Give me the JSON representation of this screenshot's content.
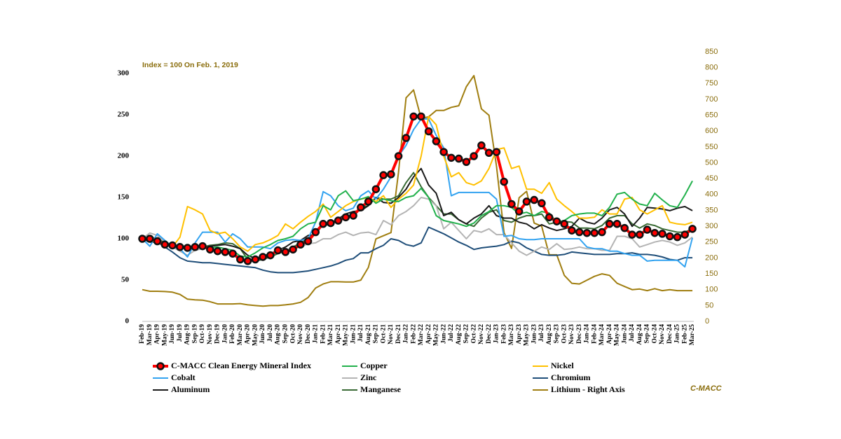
{
  "chart_data": {
    "type": "line",
    "annotation": "Index = 100 On Feb. 1, 2019",
    "source": "C-MACC",
    "legend": "bottom",
    "categories": [
      "Feb-19",
      "Mar-19",
      "Apr-19",
      "May-19",
      "Jun-19",
      "Jul-19",
      "Aug-19",
      "Sep-19",
      "Oct-19",
      "Nov-19",
      "Dec-19",
      "Jan-20",
      "Feb-20",
      "Mar-20",
      "Apr-20",
      "May-20",
      "Jun-20",
      "Jul-20",
      "Aug-20",
      "Sep-20",
      "Oct-20",
      "Nov-20",
      "Dec-20",
      "Jan-21",
      "Feb-21",
      "Mar-21",
      "Apr-21",
      "May-21",
      "Jun-21",
      "Jul-21",
      "Aug-21",
      "Sep-21",
      "Oct-21",
      "Nov-21",
      "Dec-21",
      "Jan-22",
      "Feb-22",
      "Mar-22",
      "Apr-22",
      "May-22",
      "Jun-22",
      "Jul-22",
      "Aug-22",
      "Sep-22",
      "Oct-22",
      "Nov-22",
      "Dec-22",
      "Jan-23",
      "Feb-23",
      "Mar-23",
      "Apr-23",
      "May-23",
      "Jun-23",
      "Jul-23",
      "Aug-23",
      "Sep-23",
      "Oct-23",
      "Nov-23",
      "Dec-23",
      "Jan-24",
      "Feb-24",
      "Mar-24",
      "Apr-24",
      "May-24",
      "Jun-24",
      "Jul-24",
      "Aug-24",
      "Sep-24",
      "Oct-24",
      "Nov-24",
      "Dec-24",
      "Jan-25",
      "Feb-25",
      "Mar-25"
    ],
    "ylim": [
      0,
      300
    ],
    "yticks": [
      0,
      50,
      100,
      150,
      200,
      250,
      300
    ],
    "y2lim": [
      0,
      850
    ],
    "y2ticks": [
      0,
      50,
      100,
      150,
      200,
      250,
      300,
      350,
      400,
      450,
      500,
      550,
      600,
      650,
      700,
      750,
      800,
      850
    ],
    "series": [
      {
        "name": "C-MACC Clean Energy Mineral Index",
        "color": "#ff0000",
        "markers": true,
        "values": [
          100,
          100,
          97,
          93,
          92,
          90,
          89,
          90,
          91,
          87,
          85,
          84,
          82,
          75,
          73,
          75,
          78,
          80,
          86,
          84,
          87,
          93,
          97,
          108,
          118,
          119,
          122,
          126,
          128,
          138,
          145,
          160,
          177,
          178,
          200,
          222,
          248,
          248,
          230,
          218,
          205,
          198,
          197,
          193,
          200,
          213,
          204,
          205,
          169,
          142,
          133,
          145,
          147,
          143,
          126,
          121,
          118,
          110,
          108,
          107,
          107,
          108,
          118,
          118,
          113,
          105,
          105,
          111,
          107,
          106,
          103,
          102,
          105,
          112
        ]
      },
      {
        "name": "Copper",
        "color": "#22b14c",
        "values": [
          100,
          99,
          97,
          94,
          92,
          91,
          90,
          91,
          91,
          89,
          90,
          88,
          86,
          79,
          78,
          83,
          89,
          93,
          98,
          100,
          103,
          112,
          118,
          120,
          140,
          135,
          152,
          158,
          146,
          148,
          151,
          143,
          148,
          146,
          145,
          150,
          152,
          161,
          150,
          128,
          122,
          120,
          118,
          115,
          119,
          128,
          133,
          140,
          140,
          138,
          130,
          132,
          128,
          133,
          131,
          120,
          122,
          128,
          130,
          131,
          131,
          128,
          138,
          154,
          156,
          148,
          142,
          140,
          155,
          147,
          140,
          138,
          153,
          170
        ]
      },
      {
        "name": "Nickel",
        "color": "#ffc000",
        "values": [
          100,
          98,
          96,
          93,
          90,
          102,
          139,
          135,
          130,
          110,
          106,
          108,
          100,
          90,
          85,
          93,
          95,
          99,
          104,
          118,
          112,
          120,
          127,
          133,
          142,
          126,
          133,
          140,
          145,
          148,
          150,
          145,
          152,
          138,
          148,
          155,
          165,
          200,
          248,
          238,
          200,
          175,
          180,
          168,
          165,
          170,
          185,
          208,
          210,
          185,
          188,
          160,
          160,
          155,
          168,
          148,
          140,
          133,
          125,
          125,
          126,
          135,
          130,
          130,
          148,
          150,
          135,
          130,
          135,
          140,
          120,
          118,
          117,
          120
        ]
      },
      {
        "name": "Cobalt",
        "color": "#33a3f0",
        "values": [
          100,
          91,
          106,
          98,
          90,
          88,
          78,
          95,
          108,
          108,
          108,
          96,
          106,
          100,
          90,
          90,
          90,
          88,
          95,
          98,
          99,
          98,
          100,
          120,
          157,
          152,
          140,
          134,
          137,
          152,
          158,
          148,
          160,
          175,
          200,
          213,
          232,
          245,
          245,
          225,
          210,
          152,
          156,
          156,
          156,
          156,
          156,
          148,
          103,
          104,
          100,
          99,
          99,
          100,
          100,
          100,
          100,
          100,
          100,
          90,
          88,
          88,
          85,
          85,
          82,
          80,
          80,
          73,
          74,
          74,
          74,
          74,
          66,
          101
        ]
      },
      {
        "name": "Zinc",
        "color": "#b4b4b4",
        "values": [
          100,
          107,
          104,
          96,
          90,
          85,
          80,
          86,
          88,
          90,
          85,
          84,
          82,
          78,
          72,
          74,
          77,
          80,
          87,
          87,
          88,
          90,
          94,
          95,
          100,
          100,
          105,
          108,
          104,
          107,
          108,
          105,
          122,
          117,
          128,
          133,
          140,
          150,
          148,
          140,
          112,
          120,
          110,
          100,
          110,
          108,
          112,
          105,
          105,
          95,
          85,
          80,
          85,
          90,
          87,
          94,
          87,
          88,
          90,
          88,
          88,
          86,
          86,
          103,
          103,
          100,
          90,
          93,
          96,
          98,
          96,
          92,
          95,
          102
        ]
      },
      {
        "name": "Chromium",
        "color": "#1f4e79",
        "values": [
          100,
          99,
          96,
          90,
          84,
          77,
          73,
          72,
          71,
          71,
          70,
          69,
          68,
          67,
          66,
          65,
          62,
          60,
          59,
          59,
          59,
          60,
          61,
          63,
          65,
          67,
          70,
          74,
          76,
          83,
          83,
          88,
          92,
          100,
          98,
          93,
          91,
          95,
          114,
          110,
          106,
          101,
          96,
          92,
          87,
          89,
          90,
          91,
          93,
          97,
          95,
          89,
          85,
          81,
          80,
          80,
          81,
          84,
          83,
          82,
          81,
          81,
          81,
          82,
          82,
          83,
          81,
          81,
          80,
          78,
          75,
          74,
          77,
          77
        ]
      },
      {
        "name": "Aluminum",
        "color": "#1a1a1a",
        "values": [
          100,
          96,
          96,
          93,
          91,
          92,
          90,
          90,
          89,
          91,
          92,
          93,
          91,
          88,
          80,
          76,
          79,
          82,
          86,
          90,
          96,
          98,
          104,
          105,
          118,
          116,
          124,
          130,
          133,
          134,
          140,
          150,
          144,
          143,
          150,
          160,
          175,
          185,
          165,
          155,
          128,
          132,
          123,
          118,
          125,
          130,
          140,
          128,
          125,
          125,
          120,
          118,
          112,
          117,
          113,
          110,
          112,
          115,
          125,
          120,
          118,
          125,
          135,
          138,
          130,
          115,
          125,
          138,
          137,
          136,
          134,
          137,
          139,
          134
        ]
      },
      {
        "name": "Manganese",
        "color": "#3a6b35",
        "values": [
          100,
          102,
          100,
          95,
          92,
          91,
          90,
          90,
          90,
          92,
          93,
          95,
          94,
          88,
          75,
          73,
          75,
          78,
          82,
          85,
          90,
          95,
          100,
          108,
          117,
          118,
          122,
          125,
          128,
          138,
          140,
          150,
          148,
          148,
          152,
          168,
          180,
          163,
          150,
          140,
          130,
          130,
          123,
          118,
          115,
          125,
          132,
          135,
          122,
          120,
          125,
          128,
          128,
          130,
          118,
          120,
          121,
          120,
          113,
          113,
          112,
          116,
          125,
          128,
          128,
          118,
          113,
          118,
          116,
          112,
          110,
          108,
          108,
          112
        ]
      },
      {
        "name": "Lithium - Right Axis",
        "color": "#a07e10",
        "axis": "y2",
        "values": [
          100,
          95,
          95,
          94,
          92,
          85,
          70,
          68,
          67,
          62,
          55,
          55,
          55,
          56,
          52,
          50,
          48,
          50,
          50,
          52,
          55,
          60,
          75,
          105,
          118,
          125,
          125,
          124,
          124,
          130,
          170,
          260,
          270,
          280,
          470,
          705,
          730,
          640,
          645,
          665,
          665,
          675,
          680,
          740,
          775,
          670,
          650,
          490,
          280,
          230,
          390,
          410,
          310,
          300,
          210,
          210,
          145,
          120,
          118,
          130,
          142,
          150,
          145,
          120,
          110,
          100,
          102,
          97,
          103,
          97,
          100,
          97,
          97,
          97
        ]
      }
    ]
  }
}
